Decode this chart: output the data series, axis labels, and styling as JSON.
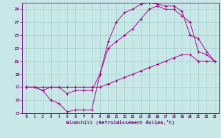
{
  "xlabel": "Windchill (Refroidissement éolien,°C)",
  "bg_color": "#c8e8e8",
  "grid_color": "#a8cece",
  "line_color": "#aa0088",
  "xlim": [
    -0.5,
    23.5
  ],
  "ylim": [
    13,
    30
  ],
  "xticks": [
    0,
    1,
    2,
    3,
    4,
    5,
    6,
    7,
    8,
    9,
    10,
    11,
    12,
    13,
    14,
    15,
    16,
    17,
    18,
    19,
    20,
    21,
    22,
    23
  ],
  "yticks": [
    13,
    15,
    17,
    19,
    21,
    23,
    25,
    27,
    29
  ],
  "line1_x": [
    0,
    1,
    2,
    3,
    4,
    5,
    6,
    7,
    8,
    9,
    10,
    11,
    12,
    13,
    14,
    15,
    16,
    17,
    18,
    19,
    20,
    21,
    22,
    23
  ],
  "line1_y": [
    17,
    17,
    16.5,
    15,
    14.5,
    13.2,
    13.5,
    13.5,
    13.5,
    19,
    24,
    27,
    28.5,
    29,
    29.8,
    30,
    29.8,
    29.5,
    29.5,
    28.7,
    25,
    24.5,
    22.5,
    21
  ],
  "line2_x": [
    0,
    1,
    2,
    3,
    4,
    5,
    6,
    7,
    8,
    9,
    10,
    11,
    12,
    13,
    14,
    15,
    16,
    17,
    18,
    19,
    20,
    21,
    22,
    23
  ],
  "line2_y": [
    17,
    17,
    16.5,
    17,
    17,
    16,
    16.5,
    16.5,
    16.5,
    19,
    23,
    24,
    25,
    26,
    27.5,
    29,
    29.5,
    29,
    29,
    28,
    27,
    22.5,
    22,
    21
  ],
  "line3_x": [
    0,
    1,
    2,
    3,
    4,
    5,
    6,
    7,
    8,
    9,
    10,
    11,
    12,
    13,
    14,
    15,
    16,
    17,
    18,
    19,
    20,
    21,
    22,
    23
  ],
  "line3_y": [
    17,
    17,
    17,
    17,
    17,
    17,
    17,
    17,
    17,
    17,
    17.5,
    18,
    18.5,
    19,
    19.5,
    20,
    20.5,
    21,
    21.5,
    22,
    22,
    21,
    21,
    21
  ]
}
